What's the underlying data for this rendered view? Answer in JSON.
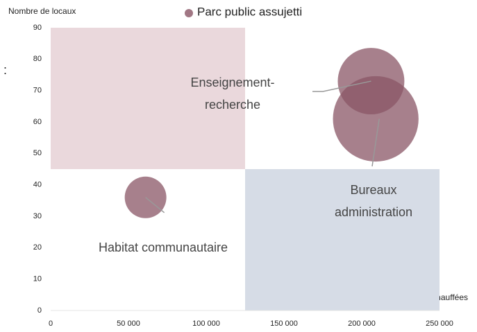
{
  "chart_data": {
    "type": "bubble",
    "x_label": "Surfaces chauffées",
    "y_label": "Nombre de locaux",
    "annotation": ":",
    "xlim": [
      0,
      250000
    ],
    "ylim": [
      0,
      90
    ],
    "xticks": [
      0,
      {
        "value": 50000,
        "label": "50 000"
      },
      {
        "value": 100000,
        "label": "100 000"
      },
      {
        "value": 150000,
        "label": "150 000"
      },
      {
        "value": 200000,
        "label": "200 000"
      },
      {
        "value": 250000,
        "label": "250 000"
      }
    ],
    "yticks": [
      0,
      10,
      20,
      30,
      40,
      50,
      60,
      70,
      80,
      90
    ],
    "grid": false,
    "legend": "top",
    "regions": [
      {
        "x": [
          0,
          125000
        ],
        "y": [
          45,
          90
        ],
        "color": "#ead8dc"
      },
      {
        "x": [
          125000,
          250000
        ],
        "y": [
          0,
          45
        ],
        "color": "#d6dce6"
      }
    ],
    "series": [
      {
        "name": "Parc public assujetti",
        "color": "#8a5565",
        "labels": [
          [
            "Habitat communautaire"
          ],
          [
            "Enseignement-",
            "recherche"
          ],
          [
            "Bureaux",
            "administration"
          ]
        ],
        "x": [
          61000,
          206000,
          209000
        ],
        "values": [
          36,
          73,
          61
        ],
        "sizes": [
          9,
          23,
          38
        ]
      }
    ]
  }
}
